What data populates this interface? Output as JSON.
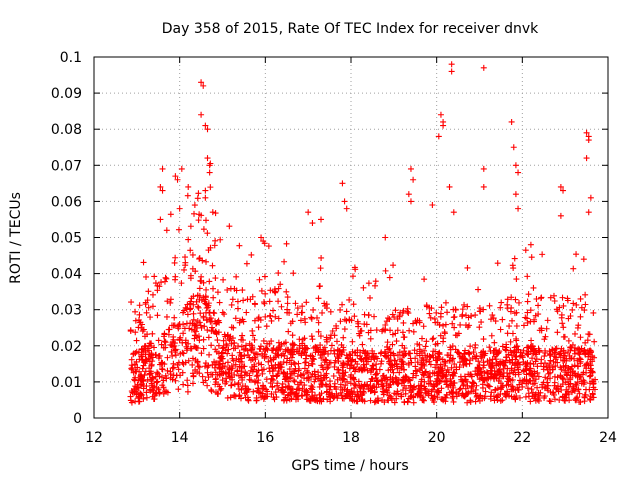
{
  "chart_data": {
    "type": "scatter",
    "title": "Day 358 of 2015, Rate Of TEC Index for receiver dnvk",
    "xlabel": "GPS time / hours",
    "ylabel": "ROTI / TECUs",
    "xlim": [
      12,
      24
    ],
    "ylim": [
      0,
      0.1
    ],
    "xticks": [
      "12",
      "14",
      "16",
      "18",
      "20",
      "22",
      "24"
    ],
    "yticks": [
      "0",
      "0.01",
      "0.02",
      "0.03",
      "0.04",
      "0.05",
      "0.06",
      "0.07",
      "0.08",
      "0.09",
      "0.1"
    ],
    "grid": true,
    "marker": "+",
    "series": [
      {
        "name": "ROTI",
        "color": "#ff0000",
        "x_range": [
          12.85,
          23.7
        ],
        "baseline_profile": {
          "x": [
            12.9,
            13.5,
            14.0,
            14.5,
            15.0,
            15.5,
            16.0,
            17.0,
            18.0,
            19.0,
            20.0,
            21.0,
            22.0,
            23.0,
            23.7
          ],
          "y": [
            0.012,
            0.014,
            0.018,
            0.025,
            0.016,
            0.013,
            0.014,
            0.013,
            0.012,
            0.012,
            0.012,
            0.012,
            0.013,
            0.013,
            0.012
          ]
        },
        "highlights": [
          {
            "x": 13.6,
            "y": 0.069
          },
          {
            "x": 13.55,
            "y": 0.064
          },
          {
            "x": 13.6,
            "y": 0.063
          },
          {
            "x": 13.55,
            "y": 0.055
          },
          {
            "x": 13.7,
            "y": 0.052
          },
          {
            "x": 13.9,
            "y": 0.067
          },
          {
            "x": 13.95,
            "y": 0.066
          },
          {
            "x": 14.05,
            "y": 0.069
          },
          {
            "x": 14.0,
            "y": 0.058
          },
          {
            "x": 14.2,
            "y": 0.064
          },
          {
            "x": 14.5,
            "y": 0.093
          },
          {
            "x": 14.55,
            "y": 0.092
          },
          {
            "x": 14.5,
            "y": 0.084
          },
          {
            "x": 14.6,
            "y": 0.081
          },
          {
            "x": 14.65,
            "y": 0.08
          },
          {
            "x": 14.65,
            "y": 0.072
          },
          {
            "x": 14.7,
            "y": 0.07
          },
          {
            "x": 14.7,
            "y": 0.068
          },
          {
            "x": 14.6,
            "y": 0.063
          },
          {
            "x": 14.6,
            "y": 0.061
          },
          {
            "x": 15.9,
            "y": 0.05
          },
          {
            "x": 15.95,
            "y": 0.049
          },
          {
            "x": 17.0,
            "y": 0.057
          },
          {
            "x": 17.1,
            "y": 0.054
          },
          {
            "x": 17.3,
            "y": 0.055
          },
          {
            "x": 17.8,
            "y": 0.065
          },
          {
            "x": 17.85,
            "y": 0.06
          },
          {
            "x": 17.9,
            "y": 0.058
          },
          {
            "x": 18.8,
            "y": 0.05
          },
          {
            "x": 19.4,
            "y": 0.069
          },
          {
            "x": 19.45,
            "y": 0.066
          },
          {
            "x": 19.35,
            "y": 0.062
          },
          {
            "x": 19.4,
            "y": 0.06
          },
          {
            "x": 19.9,
            "y": 0.059
          },
          {
            "x": 20.1,
            "y": 0.084
          },
          {
            "x": 20.15,
            "y": 0.082
          },
          {
            "x": 20.15,
            "y": 0.081
          },
          {
            "x": 20.05,
            "y": 0.078
          },
          {
            "x": 20.35,
            "y": 0.098
          },
          {
            "x": 20.35,
            "y": 0.096
          },
          {
            "x": 20.3,
            "y": 0.064
          },
          {
            "x": 20.4,
            "y": 0.057
          },
          {
            "x": 21.1,
            "y": 0.097
          },
          {
            "x": 21.1,
            "y": 0.069
          },
          {
            "x": 21.1,
            "y": 0.064
          },
          {
            "x": 21.75,
            "y": 0.082
          },
          {
            "x": 21.8,
            "y": 0.075
          },
          {
            "x": 21.85,
            "y": 0.07
          },
          {
            "x": 21.9,
            "y": 0.068
          },
          {
            "x": 21.85,
            "y": 0.062
          },
          {
            "x": 21.9,
            "y": 0.058
          },
          {
            "x": 22.2,
            "y": 0.048
          },
          {
            "x": 22.9,
            "y": 0.064
          },
          {
            "x": 22.95,
            "y": 0.063
          },
          {
            "x": 22.9,
            "y": 0.056
          },
          {
            "x": 23.5,
            "y": 0.079
          },
          {
            "x": 23.55,
            "y": 0.078
          },
          {
            "x": 23.55,
            "y": 0.077
          },
          {
            "x": 23.5,
            "y": 0.072
          },
          {
            "x": 23.6,
            "y": 0.061
          },
          {
            "x": 23.55,
            "y": 0.057
          }
        ]
      }
    ]
  }
}
